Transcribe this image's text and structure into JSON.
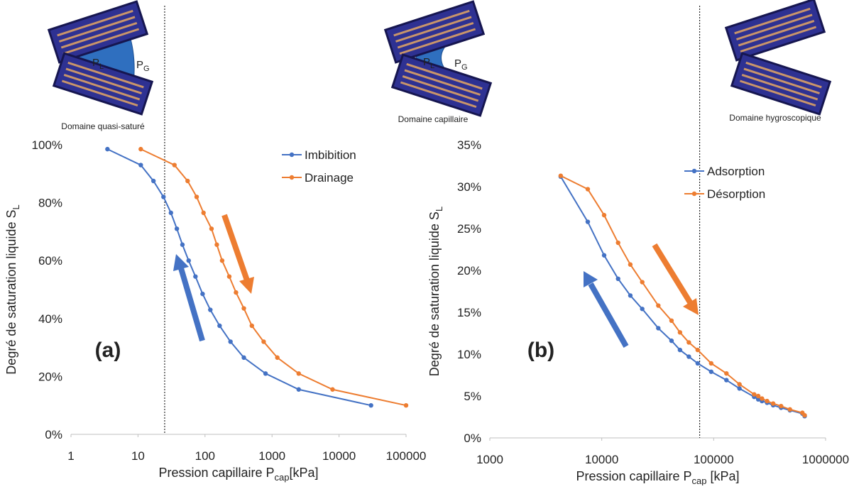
{
  "illustrations": [
    {
      "label": "Domaine quasi-saturé",
      "pl": {
        "main": "P",
        "sub": "L"
      },
      "pg": {
        "main": "P",
        "sub": "G"
      }
    },
    {
      "label": "Domaine capillaire",
      "pl": {
        "main": "P",
        "sub": "L"
      },
      "pg": {
        "main": "P",
        "sub": "G"
      }
    },
    {
      "label": "Domaine hygroscopique"
    }
  ],
  "chart_data": [
    {
      "type": "line",
      "xscale": "log",
      "annotation": "(a)",
      "x_label": {
        "text": "Pression capillaire P",
        "sub": "cap",
        "suffix": "[kPa]"
      },
      "y_label": {
        "text": "Degré de saturation liquide S",
        "sub": "L"
      },
      "xlim": [
        1,
        100000
      ],
      "xticks": [
        1,
        10,
        100,
        1000,
        10000,
        100000
      ],
      "ylim": [
        0,
        100
      ],
      "yticks": [
        {
          "value": 0,
          "label": "0%"
        },
        {
          "value": 20,
          "label": "20%"
        },
        {
          "value": 40,
          "label": "40%"
        },
        {
          "value": 60,
          "label": "60%"
        },
        {
          "value": 80,
          "label": "80%"
        },
        {
          "value": 100,
          "label": "100%"
        }
      ],
      "vline": 25,
      "legend": "upper right",
      "series": [
        {
          "name": "Imbibition",
          "color": "#4472c4",
          "x": [
            3.5,
            11,
            17,
            24,
            31,
            38,
            46,
            57,
            72,
            92,
            120,
            165,
            240,
            380,
            800,
            2500,
            30000
          ],
          "values": [
            98.5,
            93,
            87.5,
            82,
            76.5,
            71,
            65.5,
            60,
            54.5,
            48.5,
            43,
            37.5,
            32,
            26.5,
            21,
            15.5,
            10
          ]
        },
        {
          "name": "Drainage",
          "color": "#ed7d31",
          "x": [
            11,
            35,
            55,
            75,
            95,
            125,
            150,
            180,
            230,
            290,
            380,
            500,
            750,
            1200,
            2500,
            8000,
            100000
          ],
          "values": [
            98.5,
            93,
            87.5,
            82,
            76.5,
            71,
            65.5,
            60,
            54.5,
            49,
            43.5,
            37.5,
            32,
            26.5,
            21,
            15.5,
            10
          ]
        }
      ]
    },
    {
      "type": "line",
      "xscale": "log",
      "annotation": "(b)",
      "x_label": {
        "text": "Pression capillaire P",
        "sub": "cap",
        "suffix": " [kPa]"
      },
      "y_label": {
        "text": "Degré de saturation liquide S",
        "sub": "L"
      },
      "xlim": [
        1000,
        1000000
      ],
      "xticks": [
        1000,
        10000,
        100000,
        1000000
      ],
      "ylim": [
        0,
        35
      ],
      "yticks": [
        {
          "value": 0,
          "label": "0%"
        },
        {
          "value": 5,
          "label": "5%"
        },
        {
          "value": 10,
          "label": "10%"
        },
        {
          "value": 15,
          "label": "15%"
        },
        {
          "value": 20,
          "label": "20%"
        },
        {
          "value": 25,
          "label": "25%"
        },
        {
          "value": 30,
          "label": "30%"
        },
        {
          "value": 35,
          "label": "35%"
        }
      ],
      "vline": 75000,
      "legend": "upper right",
      "series": [
        {
          "name": "Adsorption",
          "color": "#4472c4",
          "x": [
            4300,
            7500,
            10500,
            14000,
            18000,
            23000,
            32000,
            42000,
            50000,
            60000,
            72000,
            95000,
            130000,
            170000,
            230000,
            250000,
            270000,
            300000,
            340000,
            400000,
            480000,
            620000,
            650000
          ],
          "values": [
            31.2,
            25.8,
            21.8,
            19,
            17,
            15.4,
            13.1,
            11.6,
            10.5,
            9.7,
            8.9,
            7.9,
            6.9,
            5.9,
            4.9,
            4.6,
            4.4,
            4.2,
            3.9,
            3.6,
            3.3,
            2.9,
            2.6
          ]
        },
        {
          "name": "Désorption",
          "color": "#ed7d31",
          "x": [
            4300,
            7500,
            10500,
            14000,
            18000,
            23000,
            32000,
            42000,
            50000,
            60000,
            72000,
            95000,
            130000,
            170000,
            230000,
            250000,
            270000,
            300000,
            340000,
            400000,
            480000,
            620000,
            650000
          ],
          "values": [
            31.3,
            29.7,
            26.6,
            23.3,
            20.7,
            18.6,
            15.8,
            14,
            12.6,
            11.4,
            10.5,
            8.9,
            7.7,
            6.4,
            5.2,
            5,
            4.7,
            4.4,
            4.1,
            3.8,
            3.4,
            3,
            2.7
          ]
        }
      ]
    }
  ]
}
